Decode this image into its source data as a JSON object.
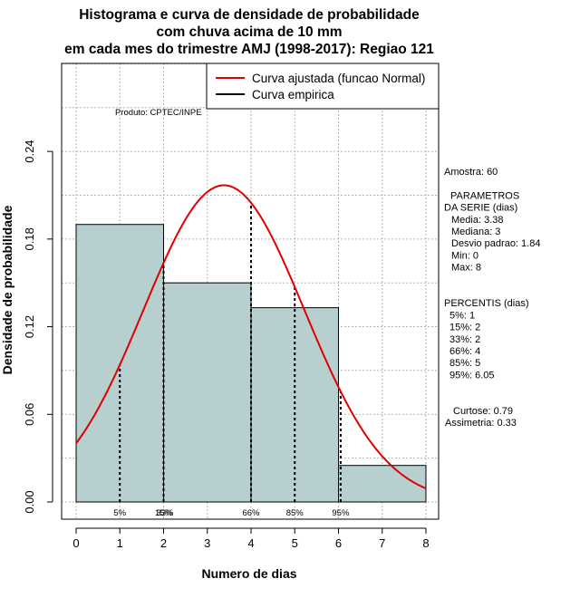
{
  "chart_data": {
    "type": "bar",
    "title_lines": [
      "Histograma e curva de densidade de probabilidade",
      "com chuva acima de 10 mm",
      "em cada mes do trimestre AMJ (1998-2017): Regiao 121"
    ],
    "xlabel": "Numero de dias",
    "ylabel": "Densidade de probabilidade",
    "xlim": [
      0,
      8
    ],
    "ylim": [
      0,
      0.3
    ],
    "x_ticks": [
      0,
      1,
      2,
      3,
      4,
      5,
      6,
      7,
      8
    ],
    "y_ticks": [
      0.0,
      0.06,
      0.12,
      0.18,
      0.24
    ],
    "y_tick_labels": [
      "0.00",
      "0.06",
      "0.12",
      "0.18",
      "0.24"
    ],
    "grid": true,
    "bins": [
      {
        "start": 0,
        "end": 2,
        "density": 0.19
      },
      {
        "start": 2,
        "end": 4,
        "density": 0.15
      },
      {
        "start": 4,
        "end": 6,
        "density": 0.133
      },
      {
        "start": 6,
        "end": 8,
        "density": 0.025
      }
    ],
    "normal_curve": {
      "mean": 3.38,
      "sd": 1.84,
      "x_from": 0,
      "x_to": 8
    },
    "percentile_lines": [
      {
        "label": "5%",
        "x": 1
      },
      {
        "label": "15%",
        "x": 2
      },
      {
        "label": "33%",
        "x": 2
      },
      {
        "label": "66%",
        "x": 4
      },
      {
        "label": "85%",
        "x": 5
      },
      {
        "label": "95%",
        "x": 6.05
      }
    ],
    "legend": {
      "placement": "top-right",
      "entries": [
        {
          "label": "Curva ajustada (funcao Normal)",
          "color": "#e00000"
        },
        {
          "label": "Curva empirica",
          "color": "#000000"
        }
      ]
    },
    "annotation": "Produto: CPTEC/INPE",
    "colors": {
      "bar_fill": "#b7cfcf",
      "curve": "#e00000",
      "grid": "#b3b3b3"
    }
  },
  "stats_panel": {
    "lines": [
      "Amostra: 60",
      "",
      "PARAMETROS",
      "DA SERIE (dias)",
      "Media: 3.38",
      "Mediana: 3",
      "Desvio padrao: 1.84",
      "Min: 0",
      "Max: 8",
      "",
      "",
      "PERCENTIS (dias)",
      "5%: 1",
      "15%: 2",
      "33%: 2",
      "66%: 4",
      "85%: 5",
      "95%: 6.05",
      "",
      "",
      "Curtose: 0.79",
      "Assimetria: 0.33"
    ]
  }
}
